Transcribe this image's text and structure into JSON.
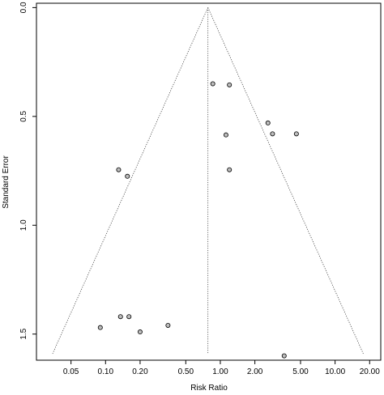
{
  "chart_data": {
    "type": "scatter",
    "title": "",
    "xlabel": "Risk Ratio",
    "ylabel": "Standard Error",
    "x_scale": "log",
    "xlim": [
      0.025,
      25
    ],
    "ylim": [
      1.62,
      -0.02
    ],
    "y_axis_reversed": true,
    "x_ticks": [
      0.05,
      0.1,
      0.2,
      0.5,
      1,
      2,
      5,
      10,
      20
    ],
    "x_tick_labels": [
      "0.05",
      "0.10",
      "0.20",
      "0.50",
      "1.00",
      "2.00",
      "5.00",
      "10.00",
      "20.00"
    ],
    "y_ticks": [
      0.0,
      0.5,
      1.0,
      1.5
    ],
    "y_tick_labels": [
      "0.0",
      "0.5",
      "1.0",
      "1.5"
    ],
    "pooled_estimate": 0.78,
    "funnel_apex_se": 0.0,
    "funnel_base_se": 1.59,
    "grid": false,
    "legend": "none",
    "points_color": "#bdbdbd",
    "points": [
      {
        "x": 0.86,
        "y": 0.35
      },
      {
        "x": 1.2,
        "y": 0.355
      },
      {
        "x": 2.6,
        "y": 0.53
      },
      {
        "x": 2.85,
        "y": 0.58
      },
      {
        "x": 4.6,
        "y": 0.58
      },
      {
        "x": 1.12,
        "y": 0.585
      },
      {
        "x": 1.2,
        "y": 0.745
      },
      {
        "x": 0.13,
        "y": 0.745
      },
      {
        "x": 0.155,
        "y": 0.775
      },
      {
        "x": 0.135,
        "y": 1.42
      },
      {
        "x": 0.16,
        "y": 1.42
      },
      {
        "x": 0.09,
        "y": 1.47
      },
      {
        "x": 0.2,
        "y": 1.49
      },
      {
        "x": 0.35,
        "y": 1.46
      },
      {
        "x": 3.6,
        "y": 1.6
      }
    ]
  }
}
